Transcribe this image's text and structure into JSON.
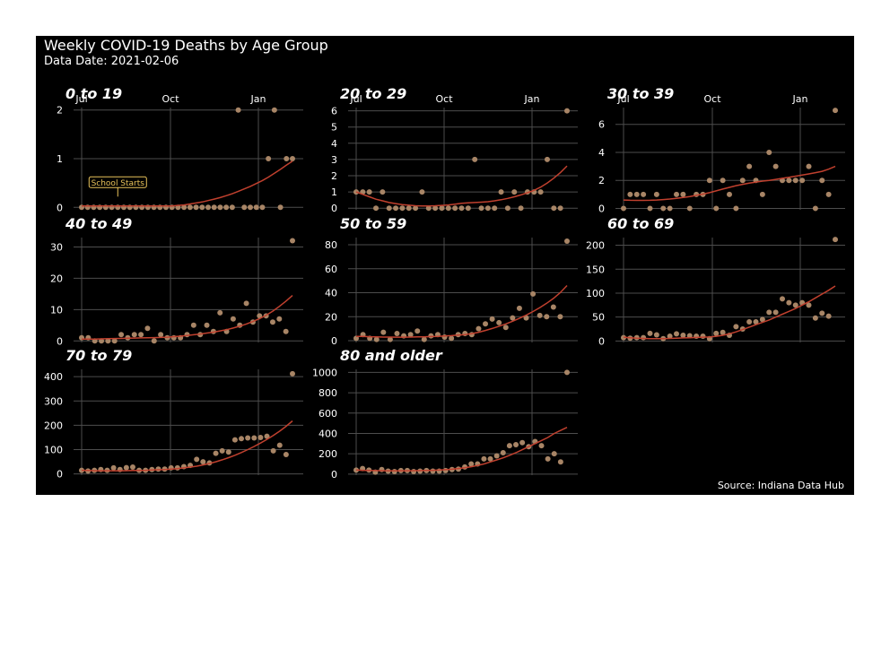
{
  "figure": {
    "title": "Weekly COVID-19 Deaths by Age Group",
    "subtitle": "Data Date: 2021-02-06",
    "caption": "Source: Indiana Data Hub",
    "month_labels": [
      "Jul",
      "Oct",
      "Jan"
    ],
    "colors": {
      "background": "#000000",
      "grid": "#4d4d4d",
      "points": "#a88566",
      "trend": "#c0402e",
      "text": "#ffffff",
      "annotation": "#e8c25a"
    }
  },
  "chart_data": [
    {
      "type": "scatter",
      "title": "0 to 19",
      "ylim": [
        -0.05,
        2.05
      ],
      "yticks": [
        0,
        1,
        2
      ],
      "annotation": {
        "text": "School Starts",
        "week": 6
      },
      "points": [
        0,
        0,
        0,
        0,
        0,
        0,
        0,
        0,
        0,
        0,
        0,
        0,
        0,
        0,
        0,
        0,
        0,
        0,
        0,
        0,
        0,
        0,
        0,
        0,
        0,
        0,
        2,
        0,
        0,
        0,
        0,
        1,
        2,
        0,
        1,
        1
      ],
      "trend": [
        0.03,
        0.03,
        0.03,
        0.03,
        0.03,
        0.03,
        0.03,
        0.03,
        0.03,
        0.03,
        0.03,
        0.03,
        0.03,
        0.03,
        0.03,
        0.03,
        0.04,
        0.05,
        0.07,
        0.09,
        0.11,
        0.14,
        0.17,
        0.2,
        0.24,
        0.28,
        0.33,
        0.38,
        0.43,
        0.49,
        0.55,
        0.62,
        0.7,
        0.78,
        0.87,
        0.95
      ]
    },
    {
      "type": "scatter",
      "title": "20 to 29",
      "ylim": [
        -0.1,
        6.2
      ],
      "yticks": [
        0,
        1,
        2,
        3,
        4,
        5,
        6
      ],
      "points": [
        1,
        1,
        1,
        0,
        1,
        0,
        0,
        0,
        0,
        0,
        1,
        0,
        0,
        0,
        0,
        0,
        0,
        0,
        3,
        0,
        0,
        0,
        1,
        0,
        1,
        0,
        1,
        1,
        1,
        3,
        0,
        0,
        6
      ],
      "trend": [
        1.0,
        0.85,
        0.7,
        0.55,
        0.45,
        0.35,
        0.28,
        0.22,
        0.18,
        0.15,
        0.14,
        0.14,
        0.15,
        0.17,
        0.2,
        0.25,
        0.3,
        0.33,
        0.35,
        0.37,
        0.4,
        0.45,
        0.52,
        0.6,
        0.7,
        0.82,
        0.95,
        1.1,
        1.3,
        1.55,
        1.85,
        2.2,
        2.6
      ]
    },
    {
      "type": "scatter",
      "title": "30 to 39",
      "ylim": [
        -0.1,
        7.2
      ],
      "yticks": [
        0,
        2,
        4,
        6
      ],
      "points": [
        0,
        1,
        1,
        1,
        0,
        1,
        0,
        0,
        1,
        1,
        0,
        1,
        1,
        2,
        0,
        2,
        1,
        0,
        2,
        3,
        2,
        1,
        4,
        3,
        2,
        2,
        2,
        2,
        3,
        0,
        2,
        1,
        7
      ],
      "trend": [
        0.6,
        0.58,
        0.57,
        0.57,
        0.58,
        0.6,
        0.63,
        0.67,
        0.72,
        0.78,
        0.85,
        0.93,
        1.02,
        1.12,
        1.25,
        1.38,
        1.5,
        1.62,
        1.72,
        1.8,
        1.88,
        1.95,
        2.0,
        2.07,
        2.15,
        2.22,
        2.3,
        2.38,
        2.46,
        2.55,
        2.65,
        2.8,
        3.0
      ]
    },
    {
      "type": "scatter",
      "title": "40 to 49",
      "ylim": [
        -0.5,
        33
      ],
      "yticks": [
        0,
        10,
        20,
        30
      ],
      "points": [
        1,
        1,
        0,
        0,
        0,
        0,
        2,
        1,
        2,
        2,
        4,
        0,
        2,
        1,
        1,
        1,
        2,
        5,
        2,
        5,
        3,
        9,
        3,
        7,
        5,
        12,
        6,
        8,
        8,
        6,
        7,
        3,
        32
      ],
      "trend": [
        0.6,
        0.6,
        0.6,
        0.65,
        0.7,
        0.75,
        0.8,
        0.85,
        0.9,
        0.95,
        1.0,
        1.05,
        1.1,
        1.2,
        1.35,
        1.5,
        1.7,
        1.95,
        2.2,
        2.5,
        2.8,
        3.2,
        3.6,
        4.1,
        4.7,
        5.4,
        6.2,
        7.1,
        8.2,
        9.5,
        11.0,
        12.7,
        14.5
      ]
    },
    {
      "type": "scatter",
      "title": "50 to 59",
      "ylim": [
        -1.5,
        86
      ],
      "yticks": [
        0,
        20,
        40,
        60,
        80
      ],
      "points": [
        2,
        5,
        2,
        1,
        7,
        1,
        6,
        4,
        5,
        8,
        1,
        4,
        5,
        3,
        2,
        5,
        6,
        5,
        10,
        14,
        18,
        15,
        11,
        19,
        27,
        19,
        39,
        21,
        20,
        28,
        20,
        83
      ],
      "trend": [
        3.5,
        3.5,
        3.3,
        3.2,
        3.0,
        3.0,
        2.9,
        2.9,
        3.0,
        3.1,
        3.2,
        3.4,
        3.6,
        3.9,
        4.2,
        4.6,
        5.1,
        5.9,
        7.0,
        8.5,
        10.2,
        12.0,
        14.0,
        16.2,
        18.6,
        21.3,
        24.3,
        27.6,
        31.2,
        35.2,
        40.0,
        46.0
      ]
    },
    {
      "type": "scatter",
      "title": "60 to 69",
      "ylim": [
        -3,
        216
      ],
      "yticks": [
        0,
        50,
        100,
        150,
        200
      ],
      "points": [
        7,
        6,
        7,
        7,
        16,
        13,
        5,
        10,
        15,
        12,
        11,
        10,
        10,
        5,
        16,
        18,
        12,
        30,
        25,
        40,
        40,
        45,
        60,
        60,
        88,
        80,
        75,
        80,
        75,
        48,
        58,
        52,
        212
      ],
      "trend": [
        8,
        7,
        6,
        5.5,
        5,
        5,
        5,
        5.5,
        6,
        6.5,
        7,
        7.5,
        8,
        8.5,
        10,
        12,
        15,
        19,
        24,
        29,
        34,
        39,
        44,
        50,
        56,
        62,
        68,
        75,
        82,
        90,
        98,
        106,
        115
      ]
    },
    {
      "type": "scatter",
      "title": "70 to 79",
      "ylim": [
        -5,
        430
      ],
      "yticks": [
        0,
        100,
        200,
        300,
        400
      ],
      "points": [
        15,
        12,
        15,
        18,
        15,
        25,
        18,
        26,
        28,
        15,
        15,
        18,
        20,
        20,
        25,
        25,
        30,
        35,
        60,
        50,
        45,
        85,
        95,
        90,
        140,
        145,
        148,
        148,
        150,
        155,
        95,
        118,
        80,
        412
      ],
      "trend": [
        15,
        14,
        13,
        13,
        13,
        13,
        13,
        13.5,
        14,
        14.5,
        15,
        16,
        17,
        18,
        20,
        22,
        25,
        28,
        32,
        37,
        43,
        50,
        58,
        67,
        77,
        88,
        100,
        113,
        127,
        142,
        158,
        176,
        196,
        218
      ]
    },
    {
      "type": "scatter",
      "title": "80 and older",
      "ylim": [
        -10,
        1030
      ],
      "yticks": [
        0,
        200,
        400,
        600,
        800,
        1000
      ],
      "points": [
        40,
        55,
        40,
        20,
        45,
        30,
        25,
        35,
        35,
        25,
        30,
        35,
        30,
        30,
        35,
        45,
        50,
        70,
        100,
        100,
        150,
        150,
        180,
        210,
        280,
        290,
        310,
        270,
        320,
        280,
        150,
        200,
        120,
        1000
      ],
      "trend": [
        40,
        38,
        36,
        35,
        34,
        33,
        33,
        33,
        33,
        34,
        35,
        36,
        38,
        40,
        44,
        48,
        55,
        63,
        73,
        85,
        100,
        120,
        140,
        160,
        185,
        210,
        240,
        270,
        300,
        330,
        360,
        400,
        430,
        460
      ]
    }
  ]
}
